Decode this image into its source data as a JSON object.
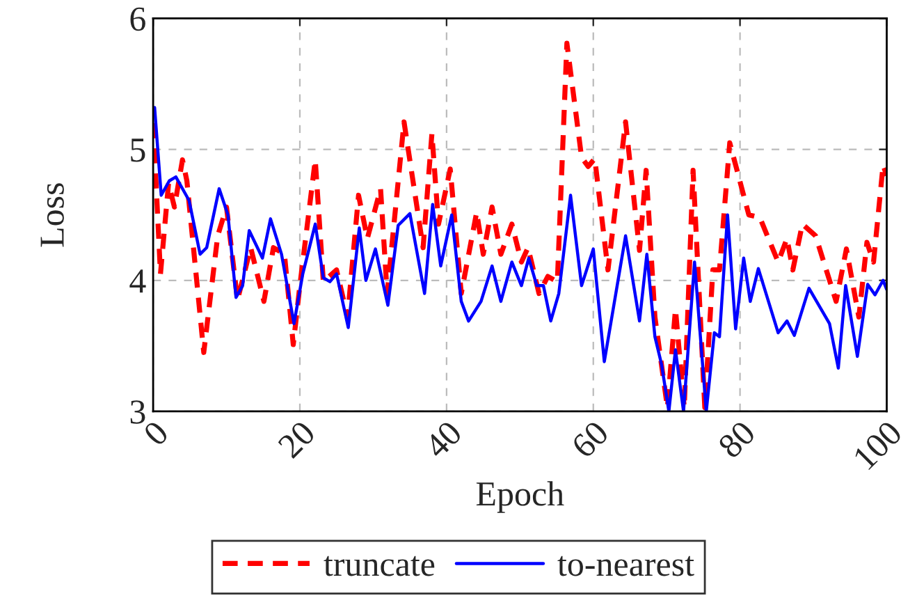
{
  "chart_data": {
    "type": "line",
    "xlabel": "Epoch",
    "ylabel": "Loss",
    "xlim": [
      0,
      100
    ],
    "ylim": [
      3,
      6
    ],
    "xticks": [
      0,
      20,
      40,
      60,
      80,
      100
    ],
    "yticks": [
      3,
      4,
      5,
      6
    ],
    "grid": true,
    "legend": "bottom",
    "series": [
      {
        "name": "truncate",
        "color": "#ff0000",
        "line_style": "dashed",
        "x": [
          0,
          1.0,
          2.1,
          2.9,
          4.0,
          4.6,
          6.9,
          8.8,
          10,
          11.5,
          13.3,
          15.1,
          16.4,
          17.9,
          19.1,
          20,
          22.1,
          23.2,
          25,
          26.5,
          28,
          29.2,
          31,
          31.9,
          34.2,
          36.8,
          38,
          38.9,
          40.5,
          42,
          44.1,
          45,
          46.2,
          47.4,
          48.9,
          50.2,
          51.1,
          52.6,
          53.8,
          55.1,
          56.4,
          58.4,
          59.3,
          60.2,
          62,
          64.4,
          66.3,
          67.2,
          68.4,
          70.1,
          71.2,
          72.4,
          73.6,
          75.2,
          76.3,
          77.2,
          78.6,
          81.2,
          82.7,
          85.2,
          86.4,
          87.2,
          88.5,
          90.3,
          93.1,
          94.5,
          96.2,
          97.3,
          98.2,
          99.5,
          100
        ],
        "values": [
          5.2,
          4.05,
          4.74,
          4.56,
          4.92,
          4.76,
          3.45,
          4.34,
          4.56,
          3.85,
          4.25,
          3.84,
          4.25,
          4.2,
          3.51,
          3.96,
          4.92,
          3.99,
          4.08,
          3.72,
          4.65,
          4.32,
          4.7,
          3.9,
          5.21,
          4.25,
          5.12,
          4.43,
          4.85,
          3.9,
          4.52,
          4.2,
          4.56,
          4.2,
          4.43,
          4.14,
          4.25,
          3.9,
          4.03,
          3.99,
          5.81,
          4.94,
          4.87,
          4.93,
          4.08,
          5.21,
          4.23,
          4.84,
          3.72,
          3.03,
          3.78,
          3.03,
          4.84,
          3.03,
          4.08,
          4.08,
          5.05,
          4.5,
          4.48,
          4.14,
          4.32,
          4.08,
          4.43,
          4.34,
          3.84,
          4.24,
          3.72,
          4.29,
          4.14,
          4.88,
          4.8
        ]
      },
      {
        "name": "to-nearest",
        "color": "#0000ff",
        "line_style": "solid",
        "x": [
          0.2,
          1.1,
          2.2,
          3.1,
          4.9,
          6.4,
          7.3,
          9,
          10.2,
          11.3,
          12.2,
          13.1,
          14.9,
          16,
          17.5,
          19.2,
          20.4,
          22.1,
          23.2,
          24.1,
          25,
          26.6,
          28.1,
          29,
          30.3,
          32,
          33.4,
          35,
          37,
          38.1,
          39.2,
          40.7,
          42,
          43,
          44.7,
          46.2,
          47.4,
          48.9,
          50.2,
          51.2,
          52.3,
          53.2,
          54.2,
          55.3,
          56.9,
          58.4,
          60,
          61.5,
          64.4,
          66.3,
          67.3,
          68.4,
          69.3,
          70.3,
          71.2,
          72.3,
          73.8,
          75.4,
          76.5,
          77.2,
          78.3,
          79.4,
          80.5,
          81.4,
          82.5,
          85.2,
          86.4,
          87.4,
          89.4,
          92.2,
          93.4,
          94.4,
          96,
          97.4,
          98.4,
          99.5,
          100
        ],
        "values": [
          5.32,
          4.65,
          4.76,
          4.79,
          4.61,
          4.2,
          4.25,
          4.7,
          4.5,
          3.87,
          3.96,
          4.38,
          4.17,
          4.47,
          4.2,
          3.67,
          4.05,
          4.43,
          4.02,
          3.99,
          4.05,
          3.64,
          4.4,
          4.0,
          4.24,
          3.81,
          4.42,
          4.51,
          3.9,
          4.58,
          4.11,
          4.5,
          3.84,
          3.69,
          3.84,
          4.11,
          3.84,
          4.14,
          3.96,
          4.17,
          3.96,
          3.96,
          3.69,
          3.9,
          4.65,
          3.96,
          4.24,
          3.38,
          4.34,
          3.69,
          4.2,
          3.57,
          3.36,
          3.0,
          3.47,
          3.0,
          4.14,
          3.0,
          3.6,
          3.57,
          4.5,
          3.63,
          4.17,
          3.84,
          4.09,
          3.6,
          3.69,
          3.58,
          3.94,
          3.67,
          3.33,
          3.96,
          3.42,
          3.97,
          3.89,
          4.0,
          3.93
        ]
      }
    ]
  }
}
